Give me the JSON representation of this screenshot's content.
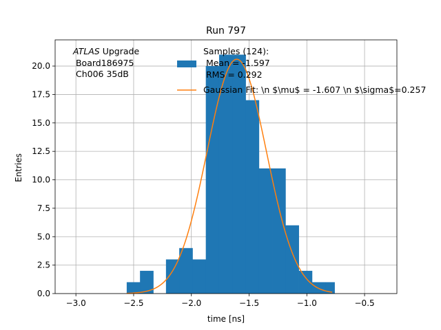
{
  "chart_data": {
    "type": "bar",
    "title": "Run 797",
    "xlabel": "time [ns]",
    "ylabel": "Entries",
    "xlim": [
      -3.18,
      -0.22
    ],
    "ylim": [
      0,
      22.3
    ],
    "grid": true,
    "x_ticks": [
      -3.0,
      -2.5,
      -2.0,
      -1.5,
      -1.0,
      -0.5
    ],
    "x_tick_labels": [
      "−3.0",
      "−2.5",
      "−2.0",
      "−1.5",
      "−1.0",
      "−0.5"
    ],
    "y_ticks": [
      0,
      2.5,
      5,
      7.5,
      10,
      12.5,
      15,
      17.5,
      20
    ],
    "y_tick_labels": [
      "0.0",
      "2.5",
      "5.0",
      "7.5",
      "10.0",
      "12.5",
      "15.0",
      "17.5",
      "20.0"
    ],
    "histogram": {
      "color": "#1f77b4",
      "bins": [
        {
          "x0": -2.56,
          "x1": -2.445,
          "count": 1
        },
        {
          "x0": -2.445,
          "x1": -2.33,
          "count": 2
        },
        {
          "x0": -2.22,
          "x1": -2.105,
          "count": 3
        },
        {
          "x0": -2.105,
          "x1": -1.99,
          "count": 4
        },
        {
          "x0": -1.99,
          "x1": -1.875,
          "count": 3
        },
        {
          "x0": -1.875,
          "x1": -1.76,
          "count": 20
        },
        {
          "x0": -1.76,
          "x1": -1.645,
          "count": 21
        },
        {
          "x0": -1.645,
          "x1": -1.53,
          "count": 21
        },
        {
          "x0": -1.53,
          "x1": -1.415,
          "count": 17
        },
        {
          "x0": -1.415,
          "x1": -1.3,
          "count": 11
        },
        {
          "x0": -1.3,
          "x1": -1.185,
          "count": 11
        },
        {
          "x0": -1.185,
          "x1": -1.07,
          "count": 6
        },
        {
          "x0": -1.07,
          "x1": -0.955,
          "count": 2
        },
        {
          "x0": -0.955,
          "x1": -0.84,
          "count": 1
        },
        {
          "x0": -0.84,
          "x1": -0.76,
          "count": 1
        }
      ]
    },
    "gaussian_fit": {
      "color": "#ff7f0e",
      "amplitude": 20.6,
      "mu": -1.607,
      "sigma": 0.257,
      "x_range": [
        -2.56,
        -0.78
      ]
    },
    "legend": {
      "placement": "top-right",
      "entries": [
        {
          "label_lines": [
            "Samples (124):",
            " Mean = -1.597",
            " RMS = 0.292"
          ],
          "color": "#1f77b4",
          "kind": "patch"
        },
        {
          "label": "Gaussian Fit: \\n $\\mu$ = -1.607 \\n $\\sigma$=0.257",
          "color": "#ff7f0e",
          "kind": "line"
        }
      ]
    },
    "annotation": {
      "italic_part": "ATLAS",
      "rest": " Upgrade",
      "lines": [
        " Board186975",
        " Ch006 35dB"
      ]
    }
  }
}
